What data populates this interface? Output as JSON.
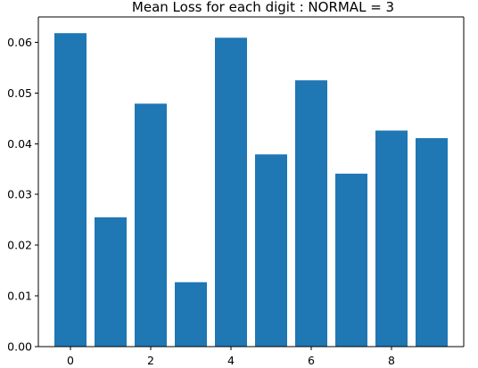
{
  "chart_data": {
    "type": "bar",
    "title": "Mean Loss for each digit : NORMAL = 3",
    "xlabel": "",
    "ylabel": "",
    "categories": [
      0,
      1,
      2,
      3,
      4,
      5,
      6,
      7,
      8,
      9
    ],
    "values": [
      0.0618,
      0.0255,
      0.0479,
      0.0127,
      0.0609,
      0.0379,
      0.0525,
      0.0341,
      0.0426,
      0.0411
    ],
    "xlim": [
      -0.8,
      9.8
    ],
    "ylim": [
      0,
      0.065
    ],
    "xticks": [
      0,
      2,
      4,
      6,
      8
    ],
    "xtick_labels": [
      "0",
      "2",
      "4",
      "6",
      "8"
    ],
    "yticks": [
      0.0,
      0.01,
      0.02,
      0.03,
      0.04,
      0.05,
      0.06
    ],
    "ytick_labels": [
      "0.00",
      "0.01",
      "0.02",
      "0.03",
      "0.04",
      "0.05",
      "0.06"
    ],
    "bar_color": "#1f77b4",
    "grid": false,
    "legend": "none"
  }
}
